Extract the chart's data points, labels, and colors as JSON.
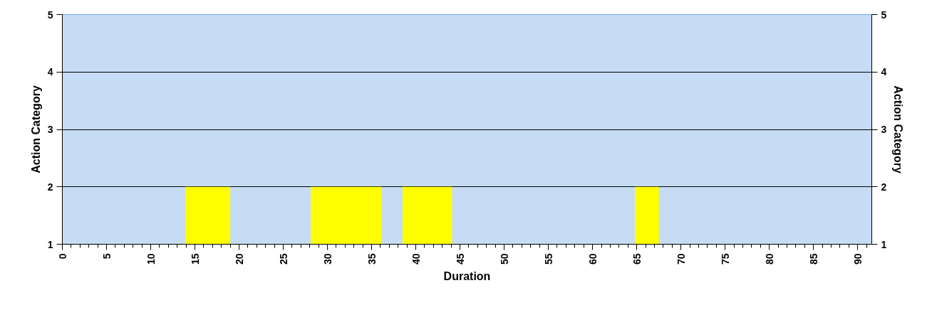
{
  "chart_data": {
    "type": "area",
    "xlabel": "Duration",
    "ylabel": "Action Category",
    "y2label": "Action Category",
    "series": [
      {
        "color": "#ffff00",
        "x": [
          13.9,
          13.9,
          19.0,
          19.0,
          28.1,
          28.1,
          36.1,
          36.1,
          38.5,
          38.5,
          44.1,
          44.1,
          64.8,
          64.8,
          67.5,
          67.5
        ],
        "values": [
          1,
          2,
          2,
          1,
          1,
          2,
          2,
          1,
          1,
          2,
          2,
          1,
          1,
          2,
          2,
          1
        ]
      }
    ],
    "xlim": [
      0,
      91.6
    ],
    "xticks": [
      0,
      5,
      10,
      15,
      20,
      25,
      30,
      35,
      40,
      45,
      50,
      55,
      60,
      65,
      70,
      75,
      80,
      85,
      90
    ],
    "ylim": [
      1,
      5
    ],
    "yticks": [
      1,
      2,
      3,
      4,
      5
    ],
    "y2lim": [
      1,
      5
    ],
    "y2ticks": [
      1,
      2,
      3,
      4,
      5
    ],
    "grid": "y"
  }
}
